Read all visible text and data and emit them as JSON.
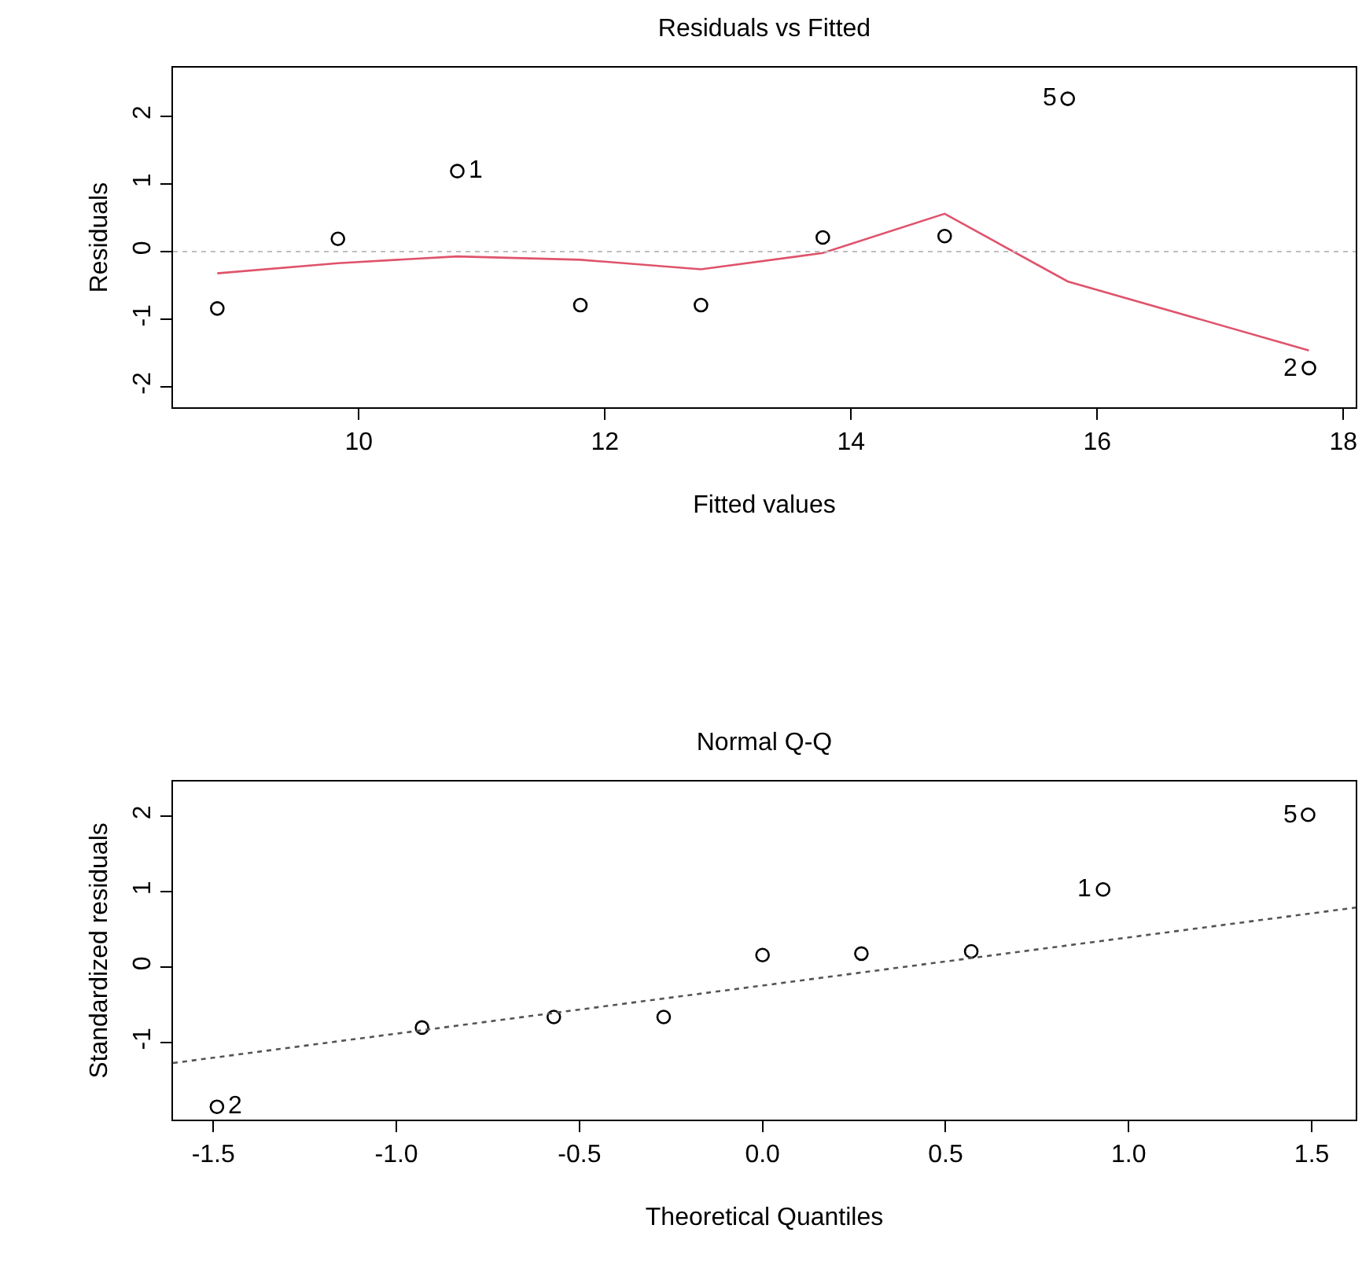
{
  "chart_data": [
    {
      "type": "scatter",
      "title": "Residuals vs Fitted",
      "xlabel": "Fitted values",
      "ylabel": "Residuals",
      "grid": false,
      "xlim": [
        8.49,
        18.1
      ],
      "xticks": [
        10,
        12,
        14,
        16,
        18
      ],
      "ylim": [
        -2.3,
        2.72
      ],
      "yticks": [
        -2,
        -1,
        0,
        1,
        2
      ],
      "series": [
        {
          "marker": "circle",
          "color": "#000000",
          "x": [
            8.85,
            9.83,
            10.8,
            11.8,
            12.78,
            13.77,
            14.76,
            15.76,
            17.72
          ],
          "values": [
            -0.84,
            0.19,
            1.19,
            -0.79,
            -0.79,
            0.21,
            0.23,
            2.26,
            -1.72
          ]
        },
        {
          "type": "line",
          "color": "#df536b",
          "line_style": "solid",
          "x": [
            8.85,
            9.83,
            10.8,
            11.8,
            12.78,
            13.77,
            14.76,
            15.76,
            17.72
          ],
          "values": [
            -0.32,
            -0.17,
            -0.07,
            -0.12,
            -0.26,
            -0.02,
            0.56,
            -0.44,
            -1.46
          ]
        }
      ],
      "ref_lines": [
        {
          "axis": "y",
          "value": 0,
          "color": "#bebebe",
          "line_style": "dotted"
        }
      ],
      "annotations": [
        {
          "text": "1",
          "x": 10.8,
          "y": 1.19
        },
        {
          "text": "5",
          "x": 15.76,
          "y": 2.26
        },
        {
          "text": "2",
          "x": 17.72,
          "y": -1.72
        }
      ]
    },
    {
      "type": "scatter",
      "title": "Normal Q-Q",
      "xlabel": "Theoretical Quantiles",
      "ylabel": "Standardized residuals",
      "grid": false,
      "xlim": [
        -1.61,
        1.62
      ],
      "xticks": [
        -1.5,
        {
          "value": -1,
          "label": "-1.0"
        },
        -0.5,
        {
          "value": 0,
          "label": "0.0"
        },
        0.5,
        {
          "value": 1,
          "label": "1.0"
        },
        1.5
      ],
      "ylim": [
        -2.02,
        2.46
      ],
      "yticks": [
        -1,
        0,
        1,
        2
      ],
      "series": [
        {
          "marker": "circle",
          "color": "#000000",
          "x": [
            -1.49,
            -0.93,
            -0.57,
            -0.27,
            0,
            0.27,
            0.57,
            0.93,
            1.49
          ],
          "values": [
            -1.85,
            -0.8,
            -0.66,
            -0.66,
            0.16,
            0.18,
            0.21,
            1.03,
            2.02
          ]
        },
        {
          "type": "line",
          "color": "#555555",
          "line_style": "dotted",
          "x": [
            -1.61,
            1.62
          ],
          "values": [
            -1.27,
            0.79
          ]
        }
      ],
      "annotations": [
        {
          "text": "2",
          "x": -1.49,
          "y": -1.85
        },
        {
          "text": "1",
          "x": 0.93,
          "y": 1.03
        },
        {
          "text": "5",
          "x": 1.49,
          "y": 2.02
        }
      ]
    }
  ]
}
